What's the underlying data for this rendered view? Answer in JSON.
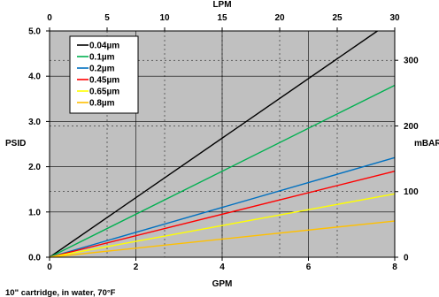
{
  "chart_data": {
    "type": "line",
    "xlabel": "GPM",
    "x2label": "LPM",
    "ylabel": "PSID",
    "y2label": "mBAR",
    "xlim": [
      0,
      8
    ],
    "x2lim": [
      0,
      30
    ],
    "ylim": [
      0,
      5
    ],
    "y2lim": [
      0,
      344.7
    ],
    "xticks": [
      "0",
      "2",
      "4",
      "6",
      "8"
    ],
    "x2ticks": [
      "0",
      "5",
      "10",
      "15",
      "20",
      "25",
      "30"
    ],
    "yticks": [
      "0.0",
      "1.0",
      "2.0",
      "3.0",
      "4.0",
      "5.0"
    ],
    "y2ticks": [
      "0",
      "100",
      "200",
      "300"
    ],
    "grid": true,
    "legend_position": "top-left",
    "plot_background": "#c0c0c0",
    "note": "10\" cartridge, in water, 70°F",
    "series": [
      {
        "name": "0.04µm",
        "color": "#000000",
        "x": [
          0,
          7.6
        ],
        "y": [
          0,
          5.0
        ]
      },
      {
        "name": "0.1µm",
        "color": "#00b050",
        "x": [
          0,
          8
        ],
        "y": [
          0,
          3.8
        ]
      },
      {
        "name": "0.2µm",
        "color": "#0070c0",
        "x": [
          0,
          8
        ],
        "y": [
          0,
          2.2
        ]
      },
      {
        "name": "0.45µm",
        "color": "#ff0000",
        "x": [
          0,
          8
        ],
        "y": [
          0,
          1.9
        ]
      },
      {
        "name": "0.65µm",
        "color": "#ffff00",
        "x": [
          0,
          8
        ],
        "y": [
          0,
          1.4
        ]
      },
      {
        "name": "0.8µm",
        "color": "#ffc000",
        "x": [
          0,
          8
        ],
        "y": [
          0,
          0.8
        ]
      }
    ]
  }
}
